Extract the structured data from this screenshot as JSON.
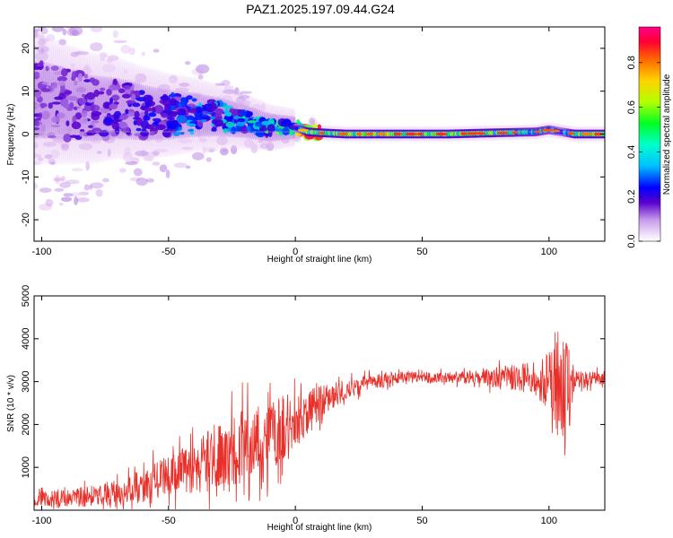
{
  "title": "PAZ1.2025.197.09.44.G24",
  "colors": {
    "snr_line": "#e8302a",
    "colormap": [
      "#ffffff",
      "#e7c9f4",
      "#a66be0",
      "#5a00cc",
      "#0000ff",
      "#00bfff",
      "#00ff66",
      "#c8ff00",
      "#ffd200",
      "#ff3c00",
      "#ff0066"
    ]
  },
  "chart_data": [
    {
      "type": "heatmap",
      "xlabel": "Height of straight line (km)",
      "ylabel": "Frequency (Hz)",
      "xlim": [
        -103,
        122
      ],
      "ylim": [
        -25,
        25
      ],
      "xticks": [
        -100,
        -50,
        0,
        50,
        100
      ],
      "yticks": [
        -20,
        -10,
        0,
        10,
        20
      ],
      "colorbar": {
        "label": "Normalized spectral amplitude",
        "range": [
          0.0,
          0.96
        ],
        "ticks": [
          "0.0",
          "0.2",
          "0.4",
          "0.6",
          "0.8"
        ],
        "tick_values": [
          0.0,
          0.2,
          0.4,
          0.6,
          0.8
        ]
      },
      "ridge": [
        {
          "x": -100,
          "freq": 8,
          "amp": 0.25
        },
        {
          "x": -90,
          "freq": 7,
          "amp": 0.25
        },
        {
          "x": -80,
          "freq": 6,
          "amp": 0.28
        },
        {
          "x": -70,
          "freq": 6,
          "amp": 0.3
        },
        {
          "x": -60,
          "freq": 5,
          "amp": 0.32
        },
        {
          "x": -50,
          "freq": 4.5,
          "amp": 0.35
        },
        {
          "x": -40,
          "freq": 4.5,
          "amp": 0.4
        },
        {
          "x": -30,
          "freq": 4,
          "amp": 0.42
        },
        {
          "x": -20,
          "freq": 3,
          "amp": 0.45
        },
        {
          "x": -10,
          "freq": 1.5,
          "amp": 0.5
        },
        {
          "x": 0,
          "freq": 1.5,
          "amp": 0.55
        },
        {
          "x": 5,
          "freq": 0.5,
          "amp": 0.9
        },
        {
          "x": 10,
          "freq": 0.3,
          "amp": 0.88
        },
        {
          "x": 20,
          "freq": 0,
          "amp": 0.9
        },
        {
          "x": 40,
          "freq": 0,
          "amp": 0.92
        },
        {
          "x": 60,
          "freq": 0,
          "amp": 0.92
        },
        {
          "x": 80,
          "freq": 0.3,
          "amp": 0.85
        },
        {
          "x": 95,
          "freq": 0.5,
          "amp": 0.75
        },
        {
          "x": 100,
          "freq": 1,
          "amp": 0.7
        },
        {
          "x": 105,
          "freq": 0.5,
          "amp": 0.55
        },
        {
          "x": 110,
          "freq": 0,
          "amp": 0.9
        },
        {
          "x": 122,
          "freq": 0,
          "amp": 0.9
        }
      ]
    },
    {
      "type": "line",
      "xlabel": "Height of straight line (km)",
      "ylabel": "SNR (10 * v/v)",
      "xlim": [
        -103,
        122
      ],
      "ylim": [
        0,
        5000
      ],
      "xticks": [
        -100,
        -50,
        0,
        50,
        100
      ],
      "yticks": [
        1000,
        2000,
        3000,
        4000,
        5000
      ],
      "series": [
        {
          "envelope_x": [
            -103,
            -90,
            -80,
            -70,
            -60,
            -50,
            -40,
            -30,
            -20,
            -10,
            0,
            10,
            20,
            30,
            40,
            50,
            60,
            70,
            80,
            90,
            95,
            100,
            103,
            105,
            107,
            110,
            122
          ],
          "envelope_mean": [
            250,
            280,
            330,
            420,
            580,
            780,
            1000,
            1250,
            1500,
            1750,
            2050,
            2500,
            2800,
            3000,
            3100,
            3100,
            3100,
            3100,
            3100,
            3100,
            3050,
            3000,
            2900,
            2900,
            2950,
            3050,
            3100
          ],
          "envelope_noise": [
            180,
            200,
            250,
            300,
            400,
            500,
            600,
            800,
            900,
            850,
            700,
            400,
            250,
            180,
            140,
            130,
            130,
            150,
            250,
            350,
            400,
            700,
            1200,
            1900,
            1600,
            200,
            150
          ]
        }
      ]
    }
  ]
}
